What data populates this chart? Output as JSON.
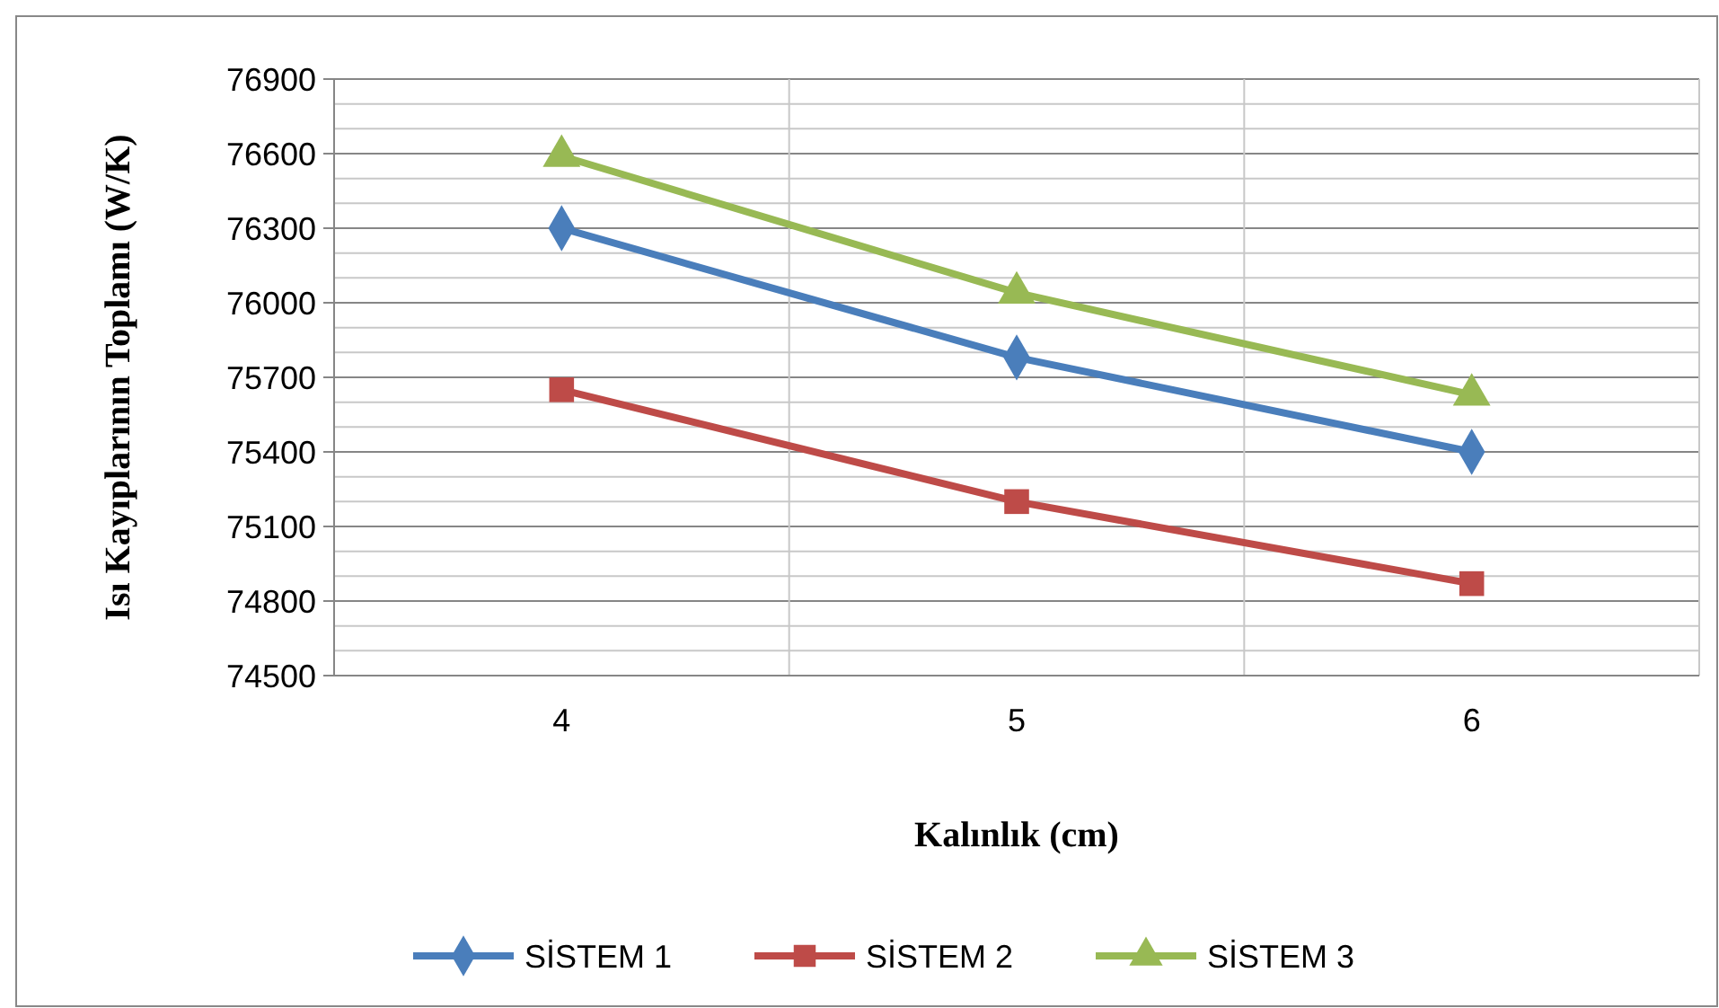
{
  "chart_data": {
    "type": "line",
    "xlabel": "Kalınlık (cm)",
    "ylabel": "Isı Kayıplarının Toplamı (W/K)",
    "categories": [
      "4",
      "5",
      "6"
    ],
    "series": [
      {
        "name": "SİSTEM 1",
        "color": "#4a7ebb",
        "marker": "diamond",
        "values": [
          76300,
          75780,
          75400
        ]
      },
      {
        "name": "SİSTEM 2",
        "color": "#be4b48",
        "marker": "square",
        "values": [
          75650,
          75200,
          74870
        ]
      },
      {
        "name": "SİSTEM 3",
        "color": "#98b954",
        "marker": "triangle",
        "values": [
          76590,
          76040,
          75630
        ]
      }
    ],
    "ylim": [
      74500,
      76900
    ],
    "yticks": [
      74500,
      74800,
      75100,
      75400,
      75700,
      76000,
      76300,
      76600,
      76900
    ],
    "grid": true,
    "legend": "bottom"
  }
}
